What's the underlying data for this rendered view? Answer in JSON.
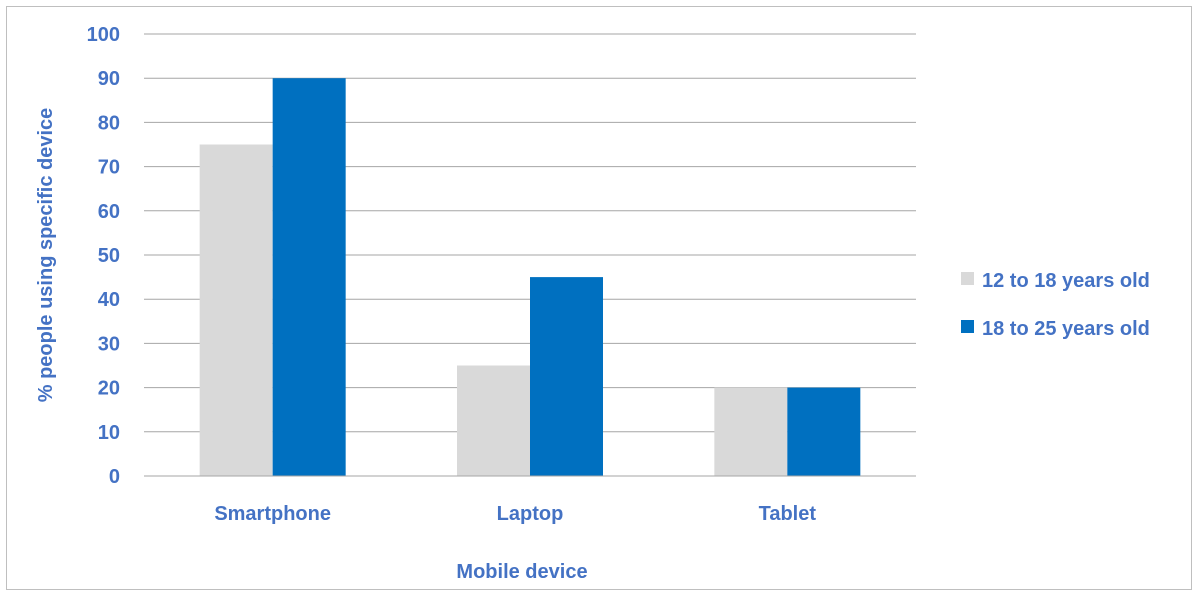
{
  "chart_data": {
    "type": "bar",
    "categories": [
      "Smartphone",
      "Laptop",
      "Tablet"
    ],
    "series": [
      {
        "name": "12 to 18 years old",
        "values": [
          75,
          25,
          20
        ],
        "color": "#D9D9D9"
      },
      {
        "name": "18 to 25 years old",
        "values": [
          90,
          45,
          20
        ],
        "color": "#0070C0"
      }
    ],
    "title": "",
    "xlabel": "Mobile device",
    "ylabel": "% people using specific device",
    "ylim": [
      0,
      100
    ],
    "yticks": [
      "0",
      "10",
      "20",
      "30",
      "40",
      "50",
      "60",
      "70",
      "80",
      "90",
      "100"
    ],
    "grid": true,
    "legend_position": "right",
    "text_color": "#4472C4",
    "grid_color": "#A6A6A6"
  }
}
